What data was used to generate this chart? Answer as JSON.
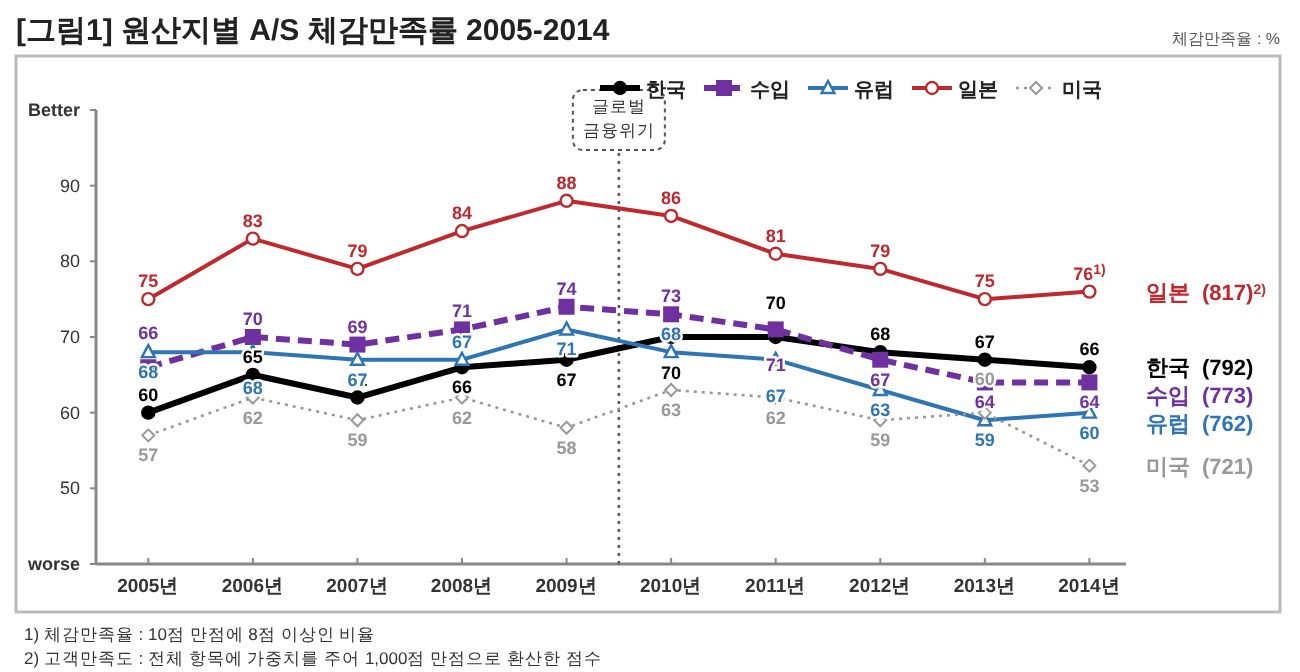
{
  "chart_data": {
    "type": "line",
    "title": "[그림1] 원산지별 A/S 체감만족률 2005-2014",
    "subtitle": "체감만족율 : %",
    "x": [
      2005,
      2006,
      2007,
      2008,
      2009,
      2010,
      2011,
      2012,
      2013,
      2014
    ],
    "xlim": [
      2004.5,
      2014.35
    ],
    "xticks": [
      {
        "value": 2005,
        "label": "2005년"
      },
      {
        "value": 2006,
        "label": "2006년"
      },
      {
        "value": 2007,
        "label": "2007년"
      },
      {
        "value": 2008,
        "label": "2008년"
      },
      {
        "value": 2009,
        "label": "2009년"
      },
      {
        "value": 2010,
        "label": "2010년"
      },
      {
        "value": 2011,
        "label": "2011년"
      },
      {
        "value": 2012,
        "label": "2012년"
      },
      {
        "value": 2013,
        "label": "2013년"
      },
      {
        "value": 2014,
        "label": "2014년"
      }
    ],
    "ylim": [
      40,
      100
    ],
    "yticks": [
      {
        "value": 40,
        "label": "worse"
      },
      50,
      60,
      70,
      80,
      90,
      {
        "value": 100,
        "label": "Better"
      }
    ],
    "series": [
      {
        "name": "한국",
        "color": "#000000",
        "marker": "circle",
        "line_style": "solid",
        "values": [
          60,
          65,
          62,
          66,
          67,
          70,
          70,
          68,
          67,
          66
        ]
      },
      {
        "name": "수입",
        "color": "#7030a0",
        "marker": "square",
        "line_style": "dashed",
        "values": [
          66,
          70,
          69,
          71,
          74,
          73,
          71,
          67,
          64,
          64
        ]
      },
      {
        "name": "유럽",
        "color": "#2e75b6",
        "marker": "triangle",
        "line_style": "solid",
        "values": [
          68,
          68,
          67,
          67,
          71,
          68,
          67,
          63,
          59,
          60
        ]
      },
      {
        "name": "일본",
        "color": "#c0282d",
        "marker": "circle",
        "line_style": "solid",
        "values": [
          75,
          83,
          79,
          84,
          88,
          86,
          81,
          79,
          75,
          76
        ],
        "value_labels": [
          "75",
          "83",
          "79",
          "84",
          "88",
          "86",
          "81",
          "79",
          "75",
          "76$^{1)}$"
        ]
      },
      {
        "name": "미국",
        "color": "#999999",
        "marker": "diamond",
        "line_style": "dotted",
        "values": [
          57,
          62,
          59,
          62,
          58,
          63,
          62,
          59,
          60,
          53
        ]
      }
    ],
    "data_labels": true,
    "legend": "top",
    "grid": false,
    "ref_lines": [
      {
        "axis": "x",
        "value": 2009.5,
        "label": "글로벌\n금융위기",
        "color": "#555555",
        "line_style": "dotted"
      }
    ],
    "annotations": [
      "(792)",
      "(773)",
      "(762)",
      "(817)$^{2)}$",
      "(721)",
      "1) 체감만족율 : 10점 만점에 8점 이상인 비율",
      "2) 고객만족도 : 전체 항목에 가중치를 주어 1,000점 만점으로 환산한 점수"
    ]
  }
}
